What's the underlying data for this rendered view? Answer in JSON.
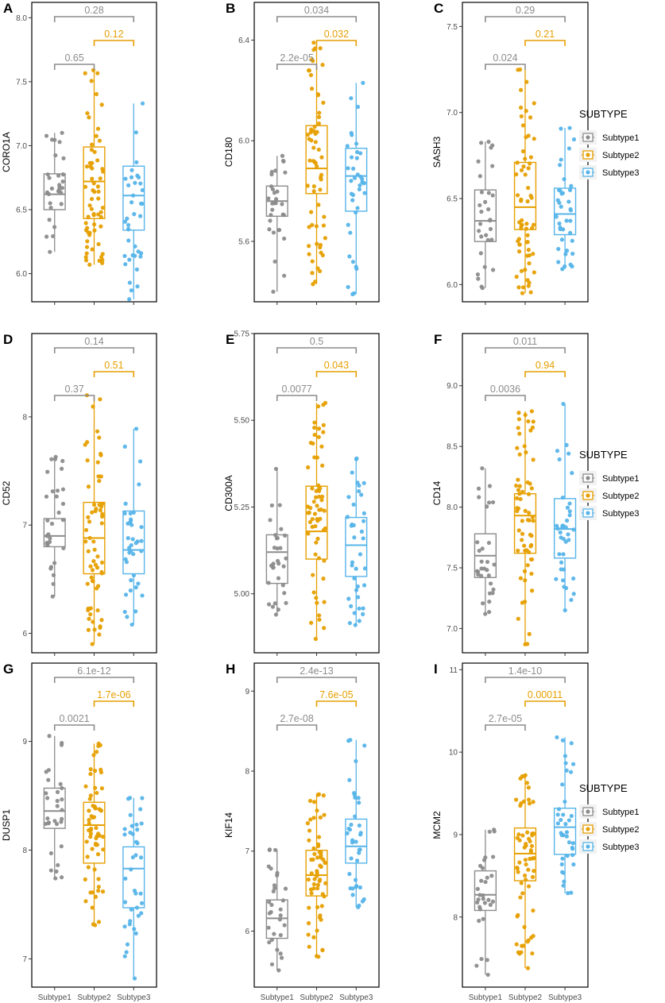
{
  "legend": {
    "title": "SUBTYPE",
    "items": [
      "Subtype1",
      "Subtype2",
      "Subtype3"
    ],
    "colors": [
      "#8c8c8c",
      "#e69f00",
      "#56b4e9"
    ]
  },
  "x_categories": [
    "Subtype1",
    "Subtype2",
    "Subtype3"
  ],
  "chart_data": [
    {
      "type": "boxplot",
      "panel": "A",
      "ylabel": "CORO1A",
      "ylim": [
        5.78,
        8.12
      ],
      "yticks": [
        "6.0",
        "6.5",
        "7.0",
        "7.5",
        "8.0"
      ],
      "ytick_values": [
        6.0,
        6.5,
        7.0,
        7.5,
        8.0
      ],
      "categories": [
        "Subtype1",
        "Subtype2",
        "Subtype3"
      ],
      "boxes": [
        {
          "q1": 6.5,
          "median": 6.62,
          "q3": 6.78,
          "lower": 6.17,
          "upper": 7.1
        },
        {
          "q1": 6.43,
          "median": 6.72,
          "q3": 6.99,
          "lower": 6.07,
          "upper": 7.59
        },
        {
          "q1": 6.34,
          "median": 6.61,
          "q3": 6.84,
          "lower": 5.8,
          "upper": 7.33
        }
      ],
      "comparisons": [
        {
          "groups": [
            1,
            3
          ],
          "label": "0.28"
        },
        {
          "groups": [
            2,
            3
          ],
          "label": "0.12"
        },
        {
          "groups": [
            1,
            2
          ],
          "label": "0.65"
        }
      ]
    },
    {
      "type": "boxplot",
      "panel": "B",
      "ylabel": "CD180",
      "ylim": [
        5.36,
        6.55
      ],
      "yticks": [
        "5.6",
        "6.0",
        "6.4"
      ],
      "ytick_values": [
        5.6,
        6.0,
        6.4
      ],
      "categories": [
        "Subtype1",
        "Subtype2",
        "Subtype3"
      ],
      "boxes": [
        {
          "q1": 5.7,
          "median": 5.76,
          "q3": 5.82,
          "lower": 5.4,
          "upper": 5.94
        },
        {
          "q1": 5.79,
          "median": 5.89,
          "q3": 6.06,
          "lower": 5.43,
          "upper": 6.39
        },
        {
          "q1": 5.72,
          "median": 5.86,
          "q3": 5.97,
          "lower": 5.39,
          "upper": 6.23
        }
      ],
      "comparisons": [
        {
          "groups": [
            1,
            3
          ],
          "label": "0.034"
        },
        {
          "groups": [
            2,
            3
          ],
          "label": "0.032"
        },
        {
          "groups": [
            1,
            2
          ],
          "label": "2.2e-05"
        }
      ]
    },
    {
      "type": "boxplot",
      "panel": "C",
      "ylabel": "SASH3",
      "ylim": [
        5.9,
        7.64
      ],
      "yticks": [
        "6.0",
        "6.5",
        "7.0",
        "7.5"
      ],
      "ytick_values": [
        6.0,
        6.5,
        7.0,
        7.5
      ],
      "categories": [
        "Subtype1",
        "Subtype2",
        "Subtype3"
      ],
      "boxes": [
        {
          "q1": 6.25,
          "median": 6.37,
          "q3": 6.55,
          "lower": 5.98,
          "upper": 6.83
        },
        {
          "q1": 6.32,
          "median": 6.45,
          "q3": 6.71,
          "lower": 5.95,
          "upper": 7.25
        },
        {
          "q1": 6.29,
          "median": 6.41,
          "q3": 6.56,
          "lower": 6.09,
          "upper": 6.91
        }
      ],
      "comparisons": [
        {
          "groups": [
            1,
            3
          ],
          "label": "0.29"
        },
        {
          "groups": [
            2,
            3
          ],
          "label": "0.21"
        },
        {
          "groups": [
            1,
            2
          ],
          "label": "0.024"
        }
      ]
    },
    {
      "type": "boxplot",
      "panel": "D",
      "ylabel": "CD52",
      "ylim": [
        5.82,
        8.77
      ],
      "yticks": [
        "6",
        "7",
        "8"
      ],
      "ytick_values": [
        6,
        7,
        8
      ],
      "categories": [
        "Subtype1",
        "Subtype2",
        "Subtype3"
      ],
      "boxes": [
        {
          "q1": 6.8,
          "median": 6.9,
          "q3": 7.06,
          "lower": 6.34,
          "upper": 7.63
        },
        {
          "q1": 6.55,
          "median": 6.88,
          "q3": 7.21,
          "lower": 5.9,
          "upper": 8.2
        },
        {
          "q1": 6.55,
          "median": 6.77,
          "q3": 7.13,
          "lower": 6.08,
          "upper": 7.89
        }
      ],
      "comparisons": [
        {
          "groups": [
            1,
            3
          ],
          "label": "0.14"
        },
        {
          "groups": [
            2,
            3
          ],
          "label": "0.51"
        },
        {
          "groups": [
            1,
            2
          ],
          "label": "0.37"
        }
      ]
    },
    {
      "type": "boxplot",
      "panel": "E",
      "ylabel": "CD300A",
      "ylim": [
        4.83,
        5.75
      ],
      "yticks": [
        "5.00",
        "5.25",
        "5.50",
        "5.75"
      ],
      "ytick_values": [
        5.0,
        5.25,
        5.5,
        5.75
      ],
      "categories": [
        "Subtype1",
        "Subtype2",
        "Subtype3"
      ],
      "boxes": [
        {
          "q1": 5.03,
          "median": 5.12,
          "q3": 5.17,
          "lower": 4.94,
          "upper": 5.36
        },
        {
          "q1": 5.1,
          "median": 5.18,
          "q3": 5.31,
          "lower": 4.87,
          "upper": 5.55
        },
        {
          "q1": 5.05,
          "median": 5.14,
          "q3": 5.22,
          "lower": 4.91,
          "upper": 5.39
        }
      ],
      "comparisons": [
        {
          "groups": [
            1,
            3
          ],
          "label": "0.5"
        },
        {
          "groups": [
            2,
            3
          ],
          "label": "0.043"
        },
        {
          "groups": [
            1,
            2
          ],
          "label": "0.0077"
        }
      ]
    },
    {
      "type": "boxplot",
      "panel": "F",
      "ylabel": "CD14",
      "ylim": [
        6.8,
        9.43
      ],
      "yticks": [
        "7.0",
        "7.5",
        "8.0",
        "8.5",
        "9.0"
      ],
      "ytick_values": [
        7.0,
        7.5,
        8.0,
        8.5,
        9.0
      ],
      "categories": [
        "Subtype1",
        "Subtype2",
        "Subtype3"
      ],
      "boxes": [
        {
          "q1": 7.42,
          "median": 7.6,
          "q3": 7.78,
          "lower": 7.12,
          "upper": 8.32
        },
        {
          "q1": 7.62,
          "median": 7.93,
          "q3": 8.11,
          "lower": 6.87,
          "upper": 8.79
        },
        {
          "q1": 7.58,
          "median": 7.82,
          "q3": 8.07,
          "lower": 7.15,
          "upper": 8.85
        }
      ],
      "comparisons": [
        {
          "groups": [
            1,
            3
          ],
          "label": "0.011"
        },
        {
          "groups": [
            2,
            3
          ],
          "label": "0.94"
        },
        {
          "groups": [
            1,
            2
          ],
          "label": "0.0036"
        }
      ]
    },
    {
      "type": "boxplot",
      "panel": "G",
      "ylabel": "DUSP1",
      "ylim": [
        6.74,
        9.72
      ],
      "yticks": [
        "7",
        "8",
        "9"
      ],
      "ytick_values": [
        7,
        8,
        9
      ],
      "categories": [
        "Subtype1",
        "Subtype2",
        "Subtype3"
      ],
      "boxes": [
        {
          "q1": 8.2,
          "median": 8.36,
          "q3": 8.57,
          "lower": 7.74,
          "upper": 9.05
        },
        {
          "q1": 7.88,
          "median": 8.23,
          "q3": 8.44,
          "lower": 7.31,
          "upper": 8.98
        },
        {
          "q1": 7.47,
          "median": 7.83,
          "q3": 8.03,
          "lower": 6.82,
          "upper": 8.48
        }
      ],
      "comparisons": [
        {
          "groups": [
            1,
            3
          ],
          "label": "6.1e-12"
        },
        {
          "groups": [
            2,
            3
          ],
          "label": "1.7e-06"
        },
        {
          "groups": [
            1,
            2
          ],
          "label": "0.0021"
        }
      ]
    },
    {
      "type": "boxplot",
      "panel": "H",
      "ylabel": "KIF14",
      "ylim": [
        5.3,
        9.35
      ],
      "yticks": [
        "6",
        "7",
        "8",
        "9"
      ],
      "ytick_values": [
        6,
        7,
        8,
        9
      ],
      "categories": [
        "Subtype1",
        "Subtype2",
        "Subtype3"
      ],
      "boxes": [
        {
          "q1": 5.91,
          "median": 6.16,
          "q3": 6.39,
          "lower": 5.51,
          "upper": 7.02
        },
        {
          "q1": 6.44,
          "median": 6.7,
          "q3": 7.01,
          "lower": 5.68,
          "upper": 7.71
        },
        {
          "q1": 6.85,
          "median": 7.06,
          "q3": 7.4,
          "lower": 6.3,
          "upper": 8.39
        }
      ],
      "comparisons": [
        {
          "groups": [
            1,
            3
          ],
          "label": "2.4e-13"
        },
        {
          "groups": [
            2,
            3
          ],
          "label": "7.6e-05"
        },
        {
          "groups": [
            1,
            2
          ],
          "label": "2.7e-08"
        }
      ]
    },
    {
      "type": "boxplot",
      "panel": "I",
      "ylabel": "MCM2",
      "ylim": [
        7.15,
        11.08
      ],
      "yticks": [
        "8",
        "9",
        "10",
        "11"
      ],
      "ytick_values": [
        8,
        9,
        10,
        11
      ],
      "categories": [
        "Subtype1",
        "Subtype2",
        "Subtype3"
      ],
      "boxes": [
        {
          "q1": 8.08,
          "median": 8.27,
          "q3": 8.56,
          "lower": 7.3,
          "upper": 9.06
        },
        {
          "q1": 8.44,
          "median": 8.77,
          "q3": 9.08,
          "lower": 7.38,
          "upper": 9.72
        },
        {
          "q1": 8.76,
          "median": 9.09,
          "q3": 9.32,
          "lower": 8.29,
          "upper": 10.18
        }
      ],
      "comparisons": [
        {
          "groups": [
            1,
            3
          ],
          "label": "1.4e-10"
        },
        {
          "groups": [
            2,
            3
          ],
          "label": "0.00011"
        },
        {
          "groups": [
            1,
            2
          ],
          "label": "2.7e-05"
        }
      ]
    }
  ]
}
